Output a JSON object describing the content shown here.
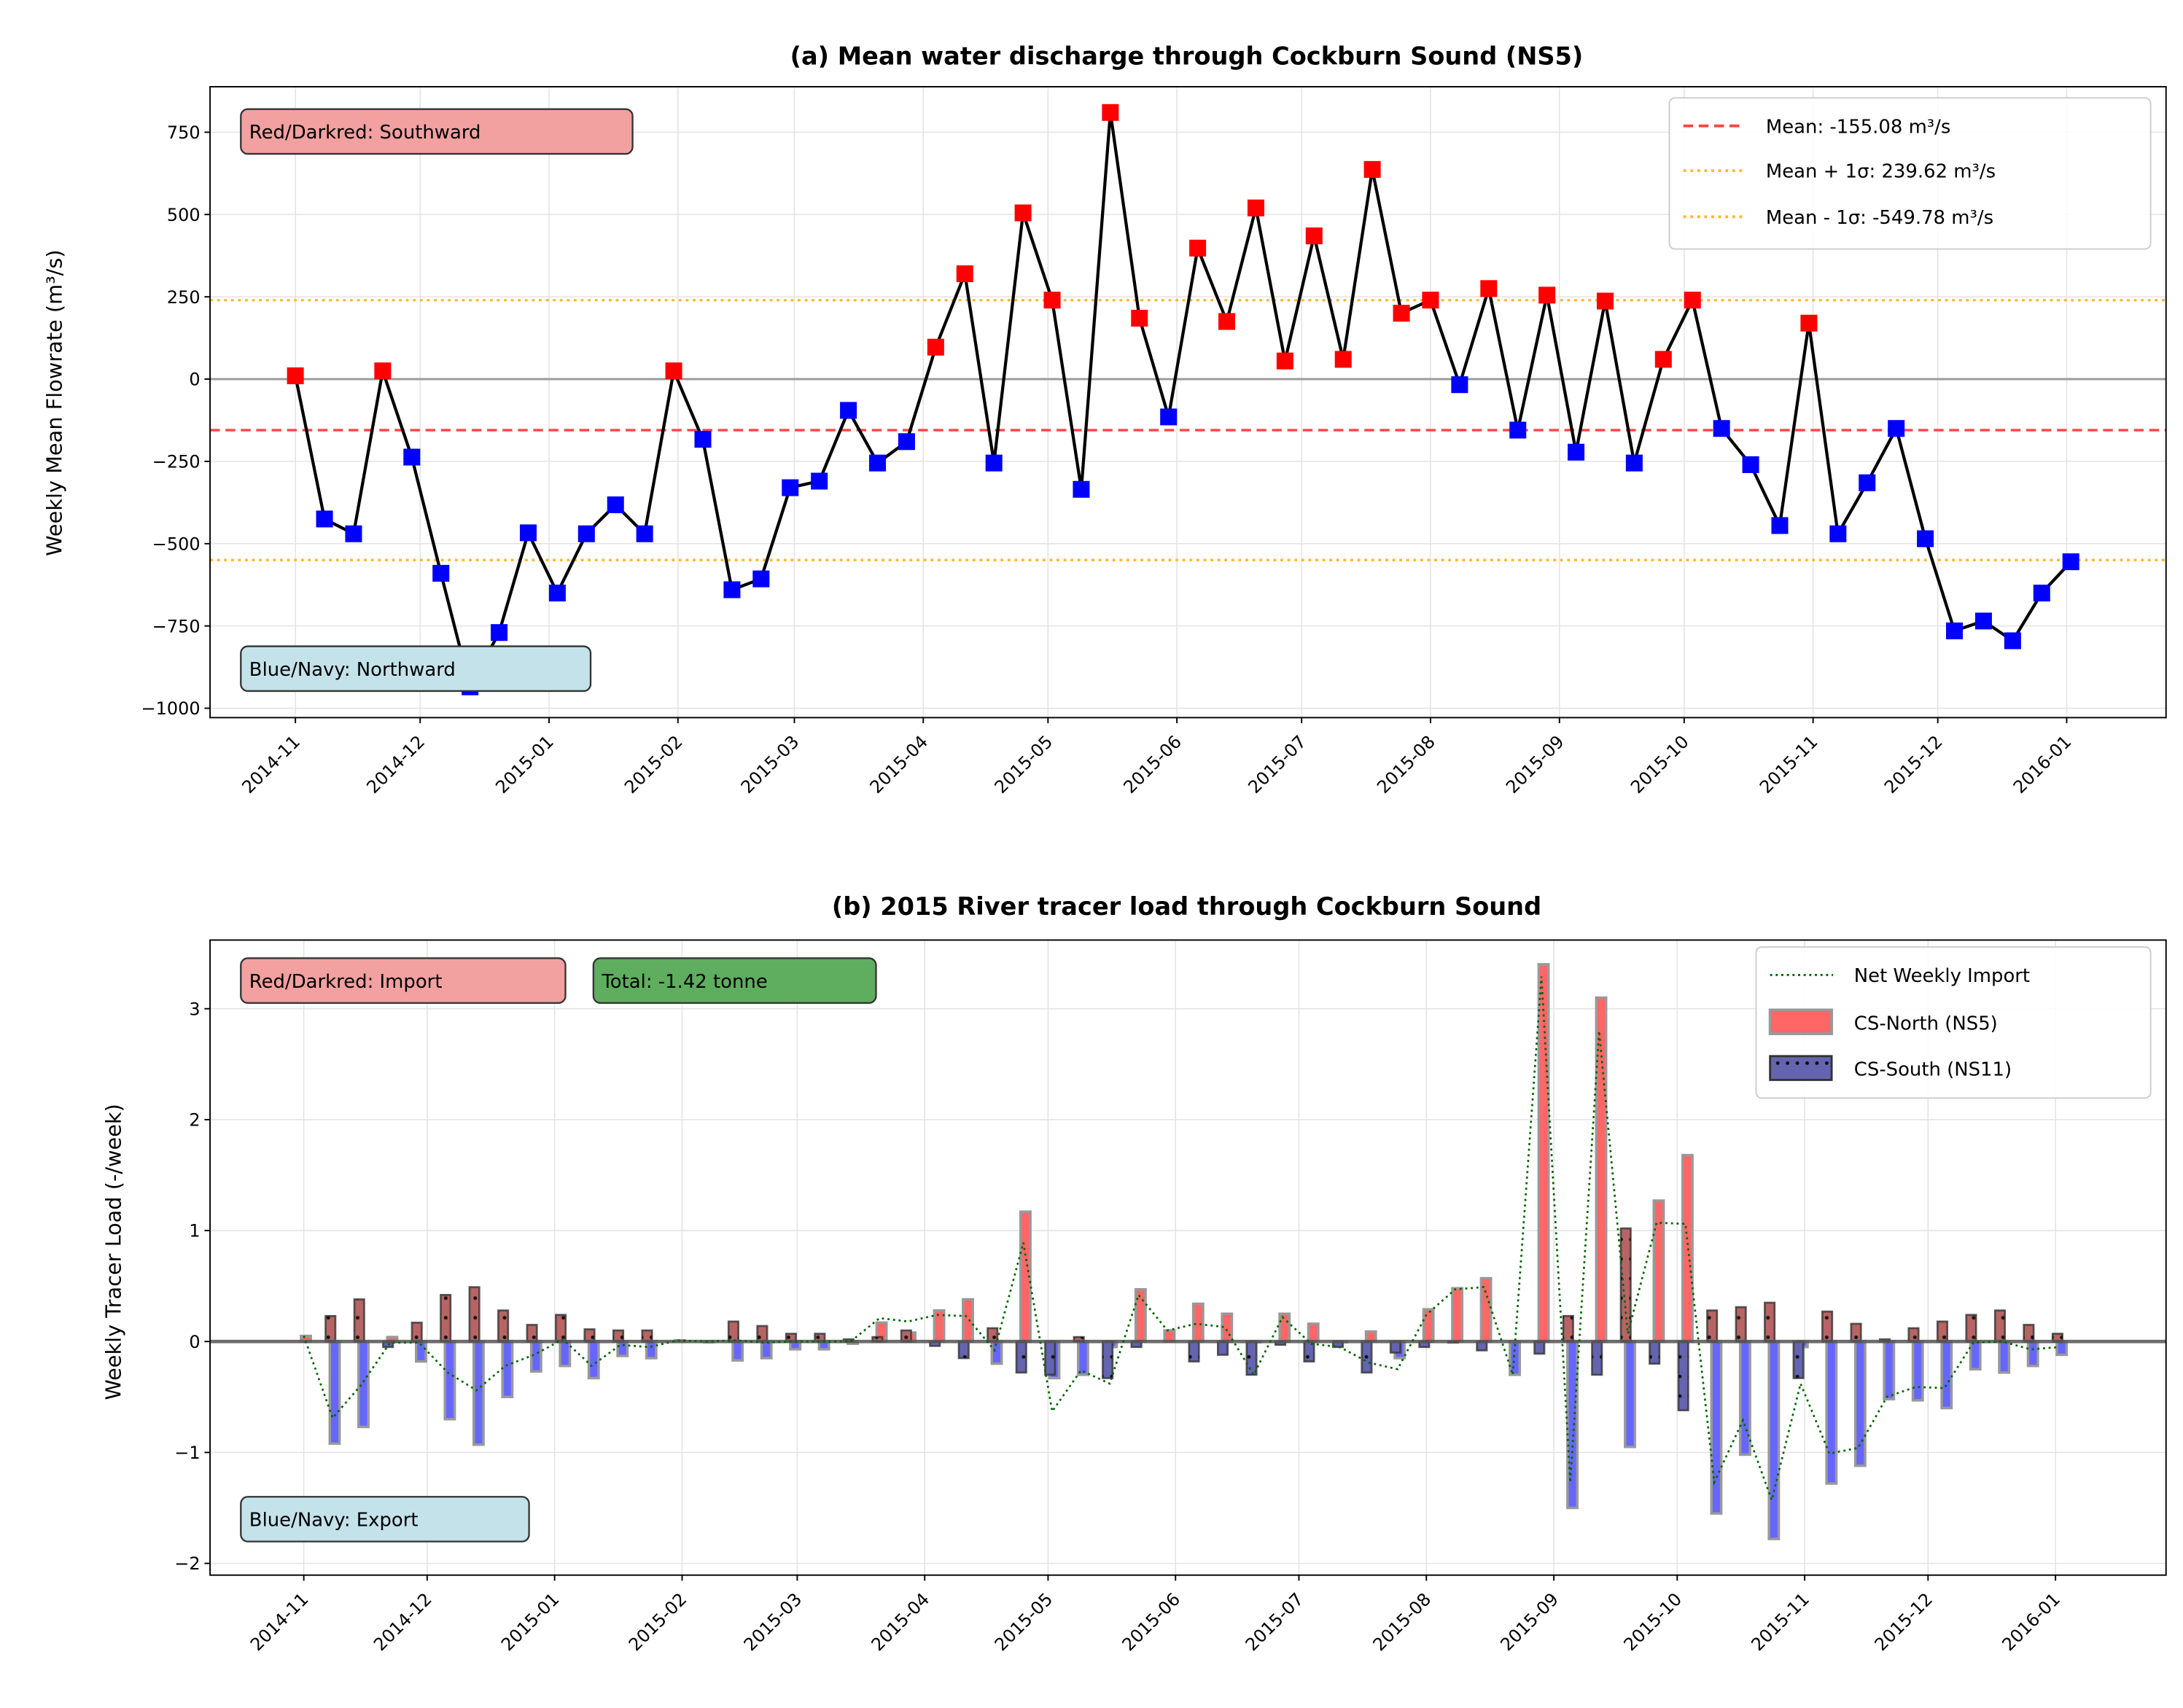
{
  "chart_data": [
    {
      "type": "line",
      "title": "(a) Mean water discharge through Cockburn Sound (NS5)",
      "xlabel": "",
      "ylabel": "Weekly Mean Flowrate (m³/s)",
      "ylim": [
        -1050,
        900
      ],
      "yticks": [
        750,
        500,
        250,
        0,
        -250,
        -500,
        -750,
        -1000
      ],
      "ytick_labels": [
        "750",
        "500",
        "250",
        "0",
        "−250",
        "−500",
        "−750",
        "−1000"
      ],
      "xticks": [
        "2014-11",
        "2014-12",
        "2015-01",
        "2015-02",
        "2015-03",
        "2015-04",
        "2015-05",
        "2015-06",
        "2015-07",
        "2015-08",
        "2015-09",
        "2015-10",
        "2015-11",
        "2015-12",
        "2016-01"
      ],
      "grid": true,
      "x_start": "2014-11-01",
      "x_step_days": 7,
      "values": [
        10,
        -425,
        -470,
        25,
        -237,
        -590,
        -935,
        -770,
        -467,
        -650,
        -470,
        -382,
        -470,
        25,
        -183,
        -640,
        -607,
        -330,
        -310,
        -95,
        -255,
        -190,
        97,
        320,
        -255,
        505,
        240,
        -335,
        810,
        185,
        -115,
        398,
        175,
        520,
        55,
        435,
        60,
        637,
        200,
        240,
        -17,
        275,
        -155,
        255,
        -222,
        237,
        -255,
        60,
        240,
        -150,
        -260,
        -445,
        170,
        -470,
        -315,
        -150,
        -485,
        -765,
        -735,
        -795,
        -650,
        -555
      ],
      "marker_colors": {
        "positive": "#ff0000",
        "negative": "#0000ff"
      },
      "line_color": "#000000",
      "hlines": [
        {
          "label": "Mean: -155.08 m³/s",
          "value": -155.08,
          "color": "#ff4444",
          "style": "dashed"
        },
        {
          "label": "Mean + 1σ: 239.62 m³/s",
          "value": 239.62,
          "color": "#ffb732",
          "style": "dotted"
        },
        {
          "label": "Mean - 1σ: -549.78 m³/s",
          "value": -549.78,
          "color": "#ffb732",
          "style": "dotted"
        }
      ],
      "zero_line_color": "#999999",
      "legend_position": "top-right",
      "annotations": [
        {
          "text": "Red/Darkred: Southward",
          "color": "#f2a0a0",
          "position": "top-left"
        },
        {
          "text": "Blue/Navy: Northward",
          "color": "#c4e2ea",
          "position": "bottom-left"
        }
      ]
    },
    {
      "type": "bar",
      "title": "(b) 2015 River tracer load through Cockburn Sound",
      "xlabel": "",
      "ylabel": "Weekly Tracer Load (-/week)",
      "ylim": [
        -2.07,
        3.6
      ],
      "yticks": [
        3,
        2,
        1,
        0,
        -1,
        -2
      ],
      "ytick_labels": [
        "3",
        "2",
        "1",
        "0",
        "−1",
        "−2"
      ],
      "xticks": [
        "2014-11",
        "2014-12",
        "2015-01",
        "2015-02",
        "2015-03",
        "2015-04",
        "2015-05",
        "2015-06",
        "2015-07",
        "2015-08",
        "2015-09",
        "2015-10",
        "2015-11",
        "2015-12",
        "2016-01"
      ],
      "grid": true,
      "x_start": "2014-11-01",
      "x_step_days": 7,
      "series": [
        {
          "name": "CS-North (NS5)",
          "pos_color": "#ff6666",
          "neg_color": "#6666ff",
          "values": [
            0.05,
            -0.92,
            -0.77,
            0.04,
            -0.18,
            -0.7,
            -0.93,
            -0.5,
            -0.27,
            -0.22,
            -0.33,
            -0.13,
            -0.15,
            0.01,
            0,
            -0.17,
            -0.15,
            -0.07,
            -0.07,
            -0.02,
            0.17,
            0.08,
            0.28,
            0.38,
            -0.2,
            1.17,
            -0.33,
            -0.3,
            -0.05,
            0.47,
            0.1,
            0.34,
            0.25,
            0,
            0.25,
            0.16,
            0,
            0.09,
            -0.15,
            0.29,
            0.48,
            0.57,
            -0.3,
            3.4,
            -1.5,
            3.1,
            -0.95,
            1.27,
            1.68,
            -1.55,
            -1.02,
            -1.78,
            -0.05,
            -1.28,
            -1.12,
            -0.52,
            -0.53,
            -0.6,
            -0.25,
            -0.28,
            -0.22,
            -0.12
          ]
        },
        {
          "name": "CS-South (NS11)",
          "pos_color": "#b86464",
          "neg_color": "#6464b0",
          "values": [
            0,
            0.23,
            0.38,
            -0.05,
            0.17,
            0.42,
            0.49,
            0.28,
            0.15,
            0.24,
            0.11,
            0.1,
            0.1,
            0,
            0,
            0.18,
            0.14,
            0.07,
            0.07,
            0.02,
            0.04,
            0.1,
            -0.04,
            -0.15,
            0.12,
            -0.28,
            -0.3,
            0.04,
            -0.33,
            -0.05,
            0,
            -0.18,
            -0.12,
            -0.3,
            -0.03,
            -0.18,
            -0.05,
            -0.28,
            -0.1,
            -0.05,
            -0.01,
            -0.08,
            0,
            -0.11,
            0.23,
            -0.3,
            1.02,
            -0.2,
            -0.62,
            0.28,
            0.31,
            0.35,
            -0.33,
            0.27,
            0.16,
            0.02,
            0.12,
            0.18,
            0.24,
            0.28,
            0.15,
            0.07
          ]
        }
      ],
      "net_series": {
        "name": "Net Weekly Import",
        "color": "#006400",
        "style": "dotted"
      },
      "zero_line_color": "#555555",
      "legend_position": "top-right",
      "annotations": [
        {
          "text": "Red/Darkred: Import",
          "color": "#f2a0a0",
          "position": "top-left"
        },
        {
          "text": "Total: -1.42 tonne",
          "color": "#5fad5f",
          "position": "top-left"
        },
        {
          "text": "Blue/Navy: Export",
          "color": "#c4e2ea",
          "position": "bottom-left"
        }
      ]
    }
  ]
}
